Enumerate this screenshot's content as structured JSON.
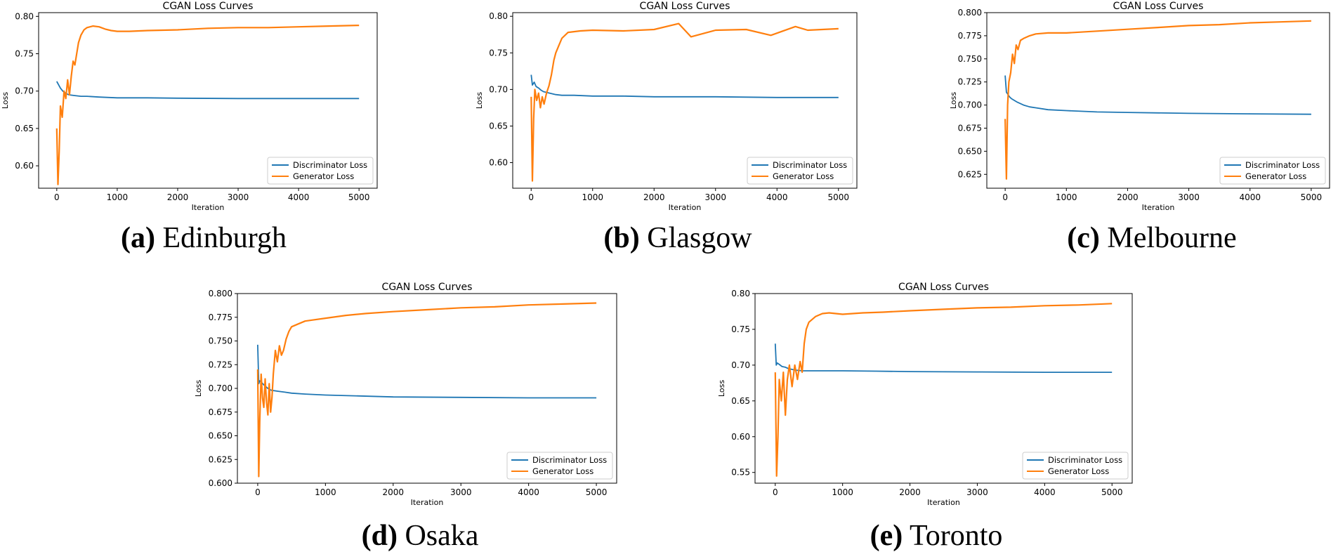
{
  "chart_data": [
    {
      "type": "line",
      "caption_letter": "(a)",
      "caption_city": "Edinburgh",
      "title": "CGAN Loss Curves",
      "xlabel": "Iteration",
      "ylabel": "Loss",
      "xlim": [
        -300,
        5300
      ],
      "ylim": [
        0.57,
        0.805
      ],
      "xticks": [
        0,
        1000,
        2000,
        3000,
        4000,
        5000
      ],
      "yticks": [
        0.6,
        0.65,
        0.7,
        0.75,
        0.8
      ],
      "ytick_labels": [
        "0.60",
        "0.65",
        "0.70",
        "0.75",
        "0.80"
      ],
      "legend_position": "lower-right",
      "series": [
        {
          "name": "Discriminator Loss",
          "color": "#1f77b4",
          "x": [
            0,
            20,
            60,
            100,
            150,
            200,
            300,
            400,
            500,
            700,
            1000,
            1500,
            2000,
            3000,
            4000,
            5000
          ],
          "y": [
            0.713,
            0.71,
            0.704,
            0.7,
            0.697,
            0.695,
            0.694,
            0.693,
            0.693,
            0.692,
            0.691,
            0.691,
            0.6905,
            0.69,
            0.69,
            0.69
          ]
        },
        {
          "name": "Generator Loss",
          "color": "#ff7f0e",
          "x": [
            0,
            20,
            40,
            60,
            90,
            120,
            150,
            180,
            210,
            240,
            270,
            300,
            330,
            360,
            400,
            450,
            500,
            600,
            700,
            800,
            900,
            1000,
            1200,
            1500,
            2000,
            2500,
            3000,
            3500,
            4000,
            4500,
            5000
          ],
          "y": [
            0.65,
            0.575,
            0.62,
            0.68,
            0.665,
            0.7,
            0.69,
            0.715,
            0.695,
            0.72,
            0.74,
            0.735,
            0.75,
            0.765,
            0.775,
            0.782,
            0.785,
            0.787,
            0.786,
            0.783,
            0.781,
            0.78,
            0.78,
            0.781,
            0.782,
            0.784,
            0.785,
            0.785,
            0.786,
            0.787,
            0.788
          ]
        }
      ]
    },
    {
      "type": "line",
      "caption_letter": "(b)",
      "caption_city": "Glasgow",
      "title": "CGAN Loss Curves",
      "xlabel": "Iteration",
      "ylabel": "Loss",
      "xlim": [
        -300,
        5300
      ],
      "ylim": [
        0.565,
        0.805
      ],
      "xticks": [
        0,
        1000,
        2000,
        3000,
        4000,
        5000
      ],
      "yticks": [
        0.6,
        0.65,
        0.7,
        0.75,
        0.8
      ],
      "ytick_labels": [
        "0.60",
        "0.65",
        "0.70",
        "0.75",
        "0.80"
      ],
      "legend_position": "lower-right",
      "series": [
        {
          "name": "Discriminator Loss",
          "color": "#1f77b4",
          "x": [
            0,
            20,
            50,
            80,
            120,
            160,
            200,
            300,
            400,
            500,
            700,
            1000,
            1500,
            2000,
            3000,
            4000,
            5000
          ],
          "y": [
            0.72,
            0.706,
            0.71,
            0.704,
            0.702,
            0.699,
            0.697,
            0.695,
            0.693,
            0.692,
            0.692,
            0.691,
            0.691,
            0.69,
            0.69,
            0.689,
            0.689
          ]
        },
        {
          "name": "Generator Loss",
          "color": "#ff7f0e",
          "x": [
            0,
            20,
            40,
            60,
            90,
            120,
            150,
            180,
            210,
            250,
            290,
            330,
            370,
            400,
            450,
            500,
            600,
            800,
            1000,
            1500,
            2000,
            2400,
            2600,
            3000,
            3500,
            3900,
            4300,
            4500,
            5000
          ],
          "y": [
            0.69,
            0.575,
            0.66,
            0.7,
            0.685,
            0.695,
            0.675,
            0.69,
            0.68,
            0.695,
            0.705,
            0.72,
            0.74,
            0.75,
            0.76,
            0.77,
            0.778,
            0.78,
            0.781,
            0.78,
            0.782,
            0.79,
            0.772,
            0.781,
            0.782,
            0.774,
            0.786,
            0.781,
            0.783
          ]
        }
      ]
    },
    {
      "type": "line",
      "caption_letter": "(c)",
      "caption_city": "Melbourne",
      "title": "CGAN Loss Curves",
      "xlabel": "Iteration",
      "ylabel": "Loss",
      "xlim": [
        -300,
        5300
      ],
      "ylim": [
        0.61,
        0.8
      ],
      "xticks": [
        0,
        1000,
        2000,
        3000,
        4000,
        5000
      ],
      "yticks": [
        0.625,
        0.65,
        0.675,
        0.7,
        0.725,
        0.75,
        0.775,
        0.8
      ],
      "ytick_labels": [
        "0.625",
        "0.650",
        "0.675",
        "0.700",
        "0.725",
        "0.750",
        "0.775",
        "0.800"
      ],
      "legend_position": "lower-right",
      "series": [
        {
          "name": "Discriminator Loss",
          "color": "#1f77b4",
          "x": [
            0,
            20,
            40,
            70,
            100,
            150,
            200,
            300,
            400,
            500,
            700,
            1000,
            1500,
            2000,
            3000,
            4000,
            5000
          ],
          "y": [
            0.732,
            0.714,
            0.712,
            0.709,
            0.707,
            0.705,
            0.703,
            0.7,
            0.698,
            0.697,
            0.695,
            0.694,
            0.6925,
            0.692,
            0.691,
            0.6905,
            0.69
          ]
        },
        {
          "name": "Generator Loss",
          "color": "#ff7f0e",
          "x": [
            0,
            20,
            40,
            60,
            90,
            120,
            150,
            180,
            210,
            250,
            300,
            400,
            500,
            700,
            1000,
            1500,
            2000,
            2500,
            3000,
            3500,
            4000,
            4500,
            5000
          ],
          "y": [
            0.685,
            0.62,
            0.7,
            0.725,
            0.735,
            0.755,
            0.745,
            0.765,
            0.76,
            0.77,
            0.772,
            0.775,
            0.777,
            0.778,
            0.778,
            0.78,
            0.782,
            0.784,
            0.786,
            0.787,
            0.789,
            0.79,
            0.791
          ]
        }
      ]
    },
    {
      "type": "line",
      "caption_letter": "(d)",
      "caption_city": "Osaka",
      "title": "CGAN Loss Curves",
      "xlabel": "Iteration",
      "ylabel": "Loss",
      "xlim": [
        -300,
        5300
      ],
      "ylim": [
        0.6,
        0.8
      ],
      "xticks": [
        0,
        1000,
        2000,
        3000,
        4000,
        5000
      ],
      "yticks": [
        0.6,
        0.625,
        0.65,
        0.675,
        0.7,
        0.725,
        0.75,
        0.775,
        0.8
      ],
      "ytick_labels": [
        "0.600",
        "0.625",
        "0.650",
        "0.675",
        "0.700",
        "0.725",
        "0.750",
        "0.775",
        "0.800"
      ],
      "legend_position": "lower-right",
      "series": [
        {
          "name": "Discriminator Loss",
          "color": "#1f77b4",
          "x": [
            0,
            15,
            30,
            60,
            100,
            150,
            200,
            300,
            400,
            500,
            700,
            1000,
            1500,
            2000,
            3000,
            4000,
            5000
          ],
          "y": [
            0.746,
            0.705,
            0.708,
            0.706,
            0.703,
            0.7,
            0.698,
            0.697,
            0.696,
            0.695,
            0.694,
            0.693,
            0.692,
            0.691,
            0.6905,
            0.69,
            0.69
          ]
        },
        {
          "name": "Generator Loss",
          "color": "#ff7f0e",
          "x": [
            0,
            15,
            30,
            50,
            70,
            90,
            110,
            130,
            150,
            170,
            190,
            210,
            230,
            260,
            290,
            320,
            350,
            380,
            420,
            460,
            500,
            600,
            700,
            800,
            1000,
            1300,
            1600,
            2000,
            2500,
            3000,
            3500,
            4000,
            4500,
            5000
          ],
          "y": [
            0.72,
            0.607,
            0.665,
            0.715,
            0.69,
            0.68,
            0.71,
            0.685,
            0.672,
            0.705,
            0.675,
            0.69,
            0.715,
            0.74,
            0.728,
            0.745,
            0.735,
            0.74,
            0.752,
            0.76,
            0.765,
            0.768,
            0.771,
            0.772,
            0.774,
            0.777,
            0.779,
            0.781,
            0.783,
            0.785,
            0.786,
            0.788,
            0.789,
            0.79
          ]
        }
      ]
    },
    {
      "type": "line",
      "caption_letter": "(e)",
      "caption_city": "Toronto",
      "title": "CGAN Loss Curves",
      "xlabel": "Iteration",
      "ylabel": "Loss",
      "xlim": [
        -300,
        5300
      ],
      "ylim": [
        0.535,
        0.8
      ],
      "xticks": [
        0,
        1000,
        2000,
        3000,
        4000,
        5000
      ],
      "yticks": [
        0.55,
        0.6,
        0.65,
        0.7,
        0.75,
        0.8
      ],
      "ytick_labels": [
        "0.55",
        "0.60",
        "0.65",
        "0.70",
        "0.75",
        "0.80"
      ],
      "legend_position": "lower-right",
      "series": [
        {
          "name": "Discriminator Loss",
          "color": "#1f77b4",
          "x": [
            0,
            15,
            30,
            60,
            100,
            150,
            200,
            300,
            400,
            500,
            700,
            1000,
            1500,
            2000,
            3000,
            4000,
            5000
          ],
          "y": [
            0.73,
            0.7,
            0.703,
            0.701,
            0.698,
            0.697,
            0.695,
            0.693,
            0.692,
            0.692,
            0.692,
            0.692,
            0.6915,
            0.691,
            0.6905,
            0.69,
            0.69
          ]
        },
        {
          "name": "Generator Loss",
          "color": "#ff7f0e",
          "x": [
            0,
            20,
            40,
            60,
            90,
            120,
            150,
            180,
            210,
            250,
            290,
            330,
            370,
            400,
            430,
            460,
            500,
            600,
            700,
            800,
            1000,
            1300,
            1600,
            2000,
            2500,
            3000,
            3500,
            4000,
            4500,
            5000
          ],
          "y": [
            0.69,
            0.545,
            0.6,
            0.68,
            0.65,
            0.69,
            0.63,
            0.68,
            0.7,
            0.67,
            0.7,
            0.68,
            0.705,
            0.69,
            0.73,
            0.75,
            0.76,
            0.768,
            0.772,
            0.773,
            0.771,
            0.773,
            0.774,
            0.776,
            0.778,
            0.78,
            0.781,
            0.783,
            0.784,
            0.786
          ]
        }
      ]
    }
  ]
}
